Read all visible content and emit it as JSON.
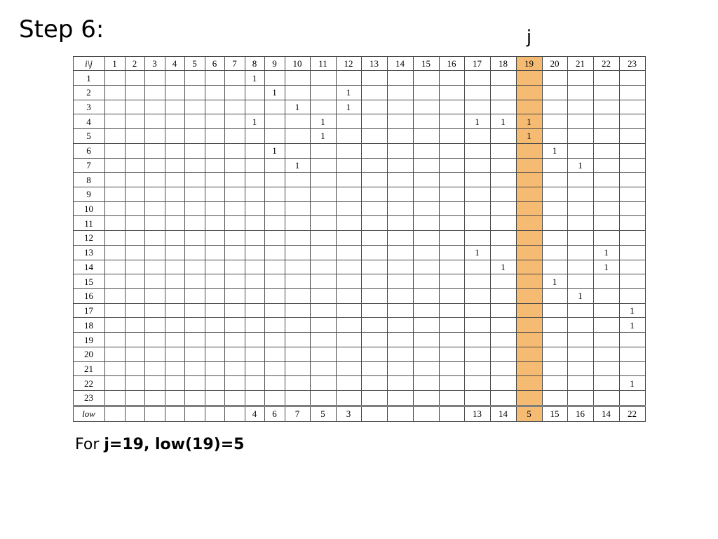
{
  "title": "Step 6:",
  "column_marker": "j",
  "highlight_color": "#f6bb73",
  "highlight_column": 19,
  "corner_label": "i\\j",
  "columns": [
    "1",
    "2",
    "3",
    "4",
    "5",
    "6",
    "7",
    "8",
    "9",
    "10",
    "11",
    "12",
    "13",
    "14",
    "15",
    "16",
    "17",
    "18",
    "19",
    "20",
    "21",
    "22",
    "23"
  ],
  "rows": [
    "1",
    "2",
    "3",
    "4",
    "5",
    "6",
    "7",
    "8",
    "9",
    "10",
    "11",
    "12",
    "13",
    "14",
    "15",
    "16",
    "17",
    "18",
    "19",
    "20",
    "21",
    "22",
    "23"
  ],
  "entries": [
    {
      "row": 1,
      "col": 8,
      "value": "1"
    },
    {
      "row": 2,
      "col": 9,
      "value": "1"
    },
    {
      "row": 2,
      "col": 12,
      "value": "1"
    },
    {
      "row": 3,
      "col": 10,
      "value": "1"
    },
    {
      "row": 3,
      "col": 12,
      "value": "1"
    },
    {
      "row": 4,
      "col": 8,
      "value": "1"
    },
    {
      "row": 4,
      "col": 11,
      "value": "1"
    },
    {
      "row": 4,
      "col": 17,
      "value": "1"
    },
    {
      "row": 4,
      "col": 18,
      "value": "1"
    },
    {
      "row": 4,
      "col": 19,
      "value": "1"
    },
    {
      "row": 5,
      "col": 11,
      "value": "1"
    },
    {
      "row": 5,
      "col": 19,
      "value": "1"
    },
    {
      "row": 6,
      "col": 9,
      "value": "1"
    },
    {
      "row": 6,
      "col": 20,
      "value": "1"
    },
    {
      "row": 7,
      "col": 10,
      "value": "1"
    },
    {
      "row": 7,
      "col": 21,
      "value": "1"
    },
    {
      "row": 13,
      "col": 17,
      "value": "1"
    },
    {
      "row": 13,
      "col": 22,
      "value": "1"
    },
    {
      "row": 14,
      "col": 18,
      "value": "1"
    },
    {
      "row": 14,
      "col": 22,
      "value": "1"
    },
    {
      "row": 15,
      "col": 20,
      "value": "1"
    },
    {
      "row": 16,
      "col": 21,
      "value": "1"
    },
    {
      "row": 17,
      "col": 23,
      "value": "1"
    },
    {
      "row": 18,
      "col": 23,
      "value": "1"
    },
    {
      "row": 22,
      "col": 23,
      "value": "1"
    }
  ],
  "low_label": "low",
  "low_values": [
    "",
    "",
    "",
    "",
    "",
    "",
    "",
    "4",
    "6",
    "7",
    "5",
    "3",
    "",
    "",
    "",
    "",
    "13",
    "14",
    "5",
    "15",
    "16",
    "14",
    "22"
  ],
  "caption": {
    "prefix": "For ",
    "part1": "j=19",
    "separator": ", ",
    "part2": "low(19)=5"
  }
}
